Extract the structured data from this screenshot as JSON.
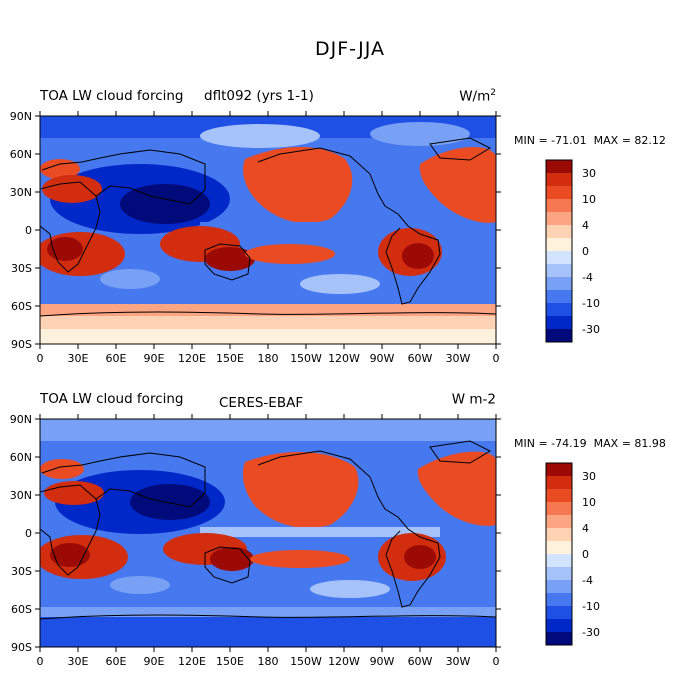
{
  "title": "DJF-JJA",
  "panels": [
    {
      "left_title": "TOA LW cloud forcing",
      "center_title": "dflt092 (yrs 1-1)",
      "units_base": "W/m",
      "units_sup": "2",
      "min_label": "MIN = -71.01",
      "max_label": "MAX =  82.12"
    },
    {
      "left_title": "TOA LW cloud forcing",
      "center_title": "CERES-EBAF",
      "units_base": "W m-2",
      "units_sup": "",
      "min_label": "MIN = -74.19",
      "max_label": "MAX =  81.98"
    }
  ],
  "map_axes": {
    "lat_ticks": [
      "90N",
      "60N",
      "30N",
      "0",
      "30S",
      "60S",
      "90S"
    ],
    "lon_ticks": [
      "0",
      "30E",
      "60E",
      "90E",
      "120E",
      "150E",
      "180",
      "150W",
      "120W",
      "90W",
      "60W",
      "30W",
      "0"
    ]
  },
  "colorbar": {
    "colors": [
      "#000a7a",
      "#0028c8",
      "#1e50e6",
      "#4678f0",
      "#78a0f5",
      "#a5c3fa",
      "#d2e4ff",
      "#fff2dc",
      "#ffd2b4",
      "#fca582",
      "#f57850",
      "#eb4b23",
      "#d22d0f",
      "#9b0a05"
    ],
    "labels": [
      "-30",
      "-10",
      "-4",
      "0",
      "4",
      "10",
      "30"
    ]
  },
  "legend_colors": {
    "deep_blue": "#0a1ea0",
    "blue": "#1e50e6",
    "light_blue": "#a5c3fa",
    "neutral": "#fff2dc",
    "orange": "#eb4b23",
    "deep_red": "#9b0a05",
    "coast": "#000000"
  }
}
